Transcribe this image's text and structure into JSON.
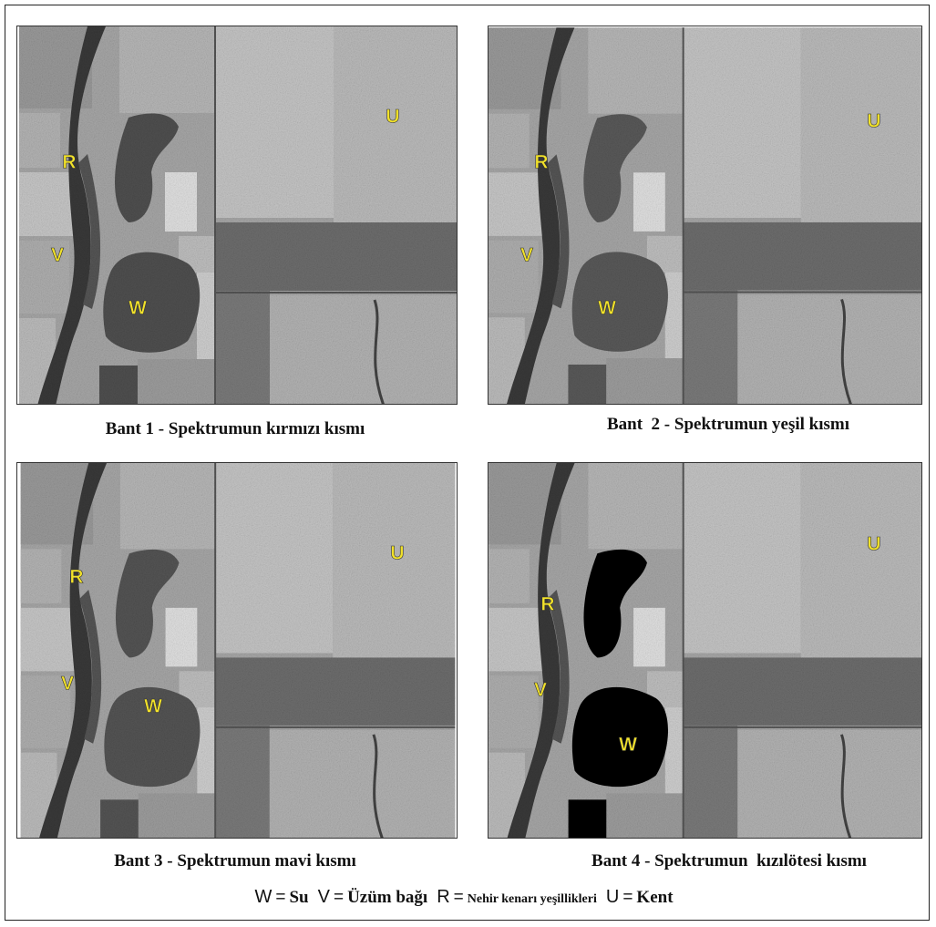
{
  "panels": [
    {
      "caption": "Bant 1 - Spektrumun kırmızı kısmı",
      "labels": [
        "R",
        "V",
        "W",
        "U"
      ]
    },
    {
      "caption": "Bant  2 - Spektrumun yeşil kısmı",
      "labels": [
        "R",
        "V",
        "W",
        "U"
      ]
    },
    {
      "caption": "Bant 3 - Spektrumun mavi kısmı",
      "labels": [
        "R",
        "V",
        "W",
        "U"
      ]
    },
    {
      "caption": "Bant 4 - Spektrumun  kızılötesi kısmı",
      "labels": [
        "R",
        "V",
        "W",
        "U"
      ]
    }
  ],
  "legend": [
    {
      "key": "W",
      "sep": "=",
      "meaning": "Su"
    },
    {
      "key": "V",
      "sep": "=",
      "meaning": "Üzüm bağı"
    },
    {
      "key": "R",
      "sep": "=",
      "meaning": "Nehir kenarı yeşillikleri"
    },
    {
      "key": "U",
      "sep": "=",
      "meaning": "Kent"
    }
  ]
}
